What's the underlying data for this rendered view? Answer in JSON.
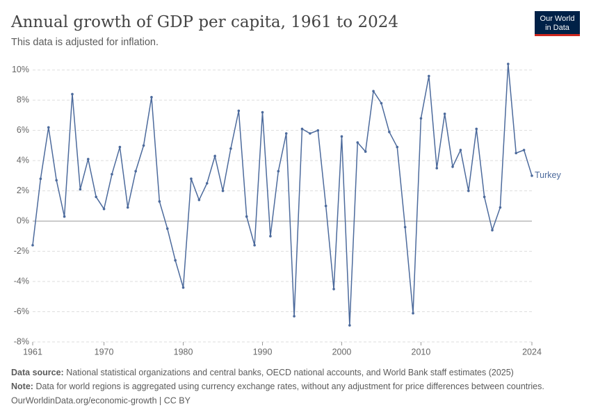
{
  "chart_data": {
    "type": "line",
    "title": "Annual growth of GDP per capita, 1961 to 2024",
    "subtitle": "This data is adjusted for inflation.",
    "logo": [
      "Our World",
      "in Data"
    ],
    "x": [
      1961,
      1962,
      1963,
      1964,
      1965,
      1966,
      1967,
      1968,
      1969,
      1970,
      1971,
      1972,
      1973,
      1974,
      1975,
      1976,
      1977,
      1978,
      1979,
      1980,
      1981,
      1982,
      1983,
      1984,
      1985,
      1986,
      1987,
      1988,
      1989,
      1990,
      1991,
      1992,
      1993,
      1994,
      1995,
      1996,
      1997,
      1998,
      1999,
      2000,
      2001,
      2002,
      2003,
      2004,
      2005,
      2006,
      2007,
      2008,
      2009,
      2010,
      2011,
      2012,
      2013,
      2014,
      2015,
      2016,
      2017,
      2018,
      2019,
      2020,
      2021,
      2022,
      2023,
      2024
    ],
    "series": [
      {
        "name": "Turkey",
        "color": "#4c6a9c",
        "values": [
          -1.6,
          2.8,
          6.2,
          2.7,
          0.3,
          8.4,
          2.1,
          4.1,
          1.6,
          0.8,
          3.1,
          4.9,
          0.9,
          3.3,
          5.0,
          8.2,
          1.3,
          -0.5,
          -2.6,
          -4.4,
          2.8,
          1.4,
          2.5,
          4.3,
          2.0,
          4.8,
          7.3,
          0.3,
          -1.6,
          7.2,
          -1.0,
          3.3,
          5.8,
          -6.3,
          6.1,
          5.8,
          6.0,
          1.0,
          -4.5,
          5.6,
          -6.9,
          5.2,
          4.6,
          8.6,
          7.8,
          5.9,
          4.9,
          -0.4,
          -6.1,
          6.8,
          9.6,
          3.5,
          7.1,
          3.6,
          4.7,
          2.0,
          6.1,
          1.6,
          -0.6,
          0.9,
          10.4,
          4.5,
          4.7,
          3.0
        ]
      }
    ],
    "xlim": [
      1961,
      2024
    ],
    "xticks": [
      1961,
      1970,
      1980,
      1990,
      2000,
      2010,
      2024
    ],
    "ylim": [
      -8,
      10.4
    ],
    "yticks": [
      {
        "value": -8,
        "label": "-8%"
      },
      {
        "value": -6,
        "label": "-6%"
      },
      {
        "value": -4,
        "label": "-4%"
      },
      {
        "value": -2,
        "label": "-2%"
      },
      {
        "value": 0,
        "label": "0%"
      },
      {
        "value": 2,
        "label": "2%"
      },
      {
        "value": 4,
        "label": "4%"
      },
      {
        "value": 6,
        "label": "6%"
      },
      {
        "value": 8,
        "label": "8%"
      },
      {
        "value": 10,
        "label": "10%"
      }
    ],
    "grid": true,
    "source_label": "Data source:",
    "source": "National statistical organizations and central banks, OECD national accounts, and World Bank staff estimates (2025)",
    "note_label": "Note:",
    "note": "Data for world regions is aggregated using currency exchange rates, without any adjustment for price differences between countries.",
    "credit": "OurWorldinData.org/economic-growth | CC BY"
  }
}
